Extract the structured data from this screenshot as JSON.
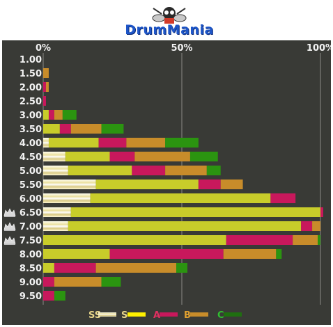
{
  "brand": {
    "logo_text": "DrumMania"
  },
  "chart_data": {
    "type": "bar",
    "stacked": true,
    "orientation": "horizontal",
    "xlim": [
      0,
      100
    ],
    "x_ticks": [
      "0%",
      "50%",
      "100%"
    ],
    "categories": [
      "1.00",
      "1.50",
      "2.00",
      "2.50",
      "3.00",
      "3.50",
      "4.00",
      "4.50",
      "5.00",
      "5.50",
      "6.00",
      "6.50",
      "7.00",
      "7.50",
      "8.00",
      "8.50",
      "9.00",
      "9.50"
    ],
    "crowned": [
      "6.50",
      "7.00",
      "7.50"
    ],
    "series": [
      {
        "name": "SS",
        "color": "#f6f1c4",
        "values": [
          0,
          0,
          0,
          0,
          0,
          0,
          2,
          8,
          9,
          19,
          17,
          10,
          9,
          0,
          0,
          0,
          0,
          0
        ]
      },
      {
        "name": "S",
        "color": "#c8cc2a",
        "values": [
          0,
          0,
          0,
          0,
          2,
          6,
          18,
          16,
          23,
          37,
          65,
          90,
          84,
          66,
          24,
          4,
          0,
          0
        ]
      },
      {
        "name": "A",
        "color": "#c8185c",
        "values": [
          0,
          0,
          1,
          1,
          2,
          4,
          10,
          9,
          12,
          8,
          9,
          1,
          4,
          24,
          41,
          15,
          4,
          4
        ]
      },
      {
        "name": "B",
        "color": "#c88c2a",
        "values": [
          0,
          2,
          1,
          0,
          3,
          11,
          14,
          20,
          15,
          8,
          0,
          0,
          3,
          9,
          19,
          29,
          17,
          0
        ]
      },
      {
        "name": "C",
        "color": "#2b9410",
        "values": [
          0,
          0,
          0,
          0,
          5,
          8,
          12,
          10,
          5,
          0,
          0,
          0,
          0,
          1,
          2,
          4,
          7,
          4
        ]
      }
    ],
    "legend": {
      "position": "bottom-center",
      "entries": [
        "SS",
        "S",
        "A",
        "B",
        "C"
      ]
    },
    "grid": true
  }
}
